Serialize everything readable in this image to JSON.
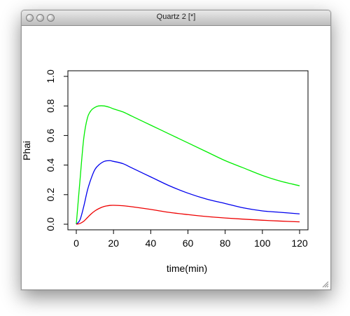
{
  "window": {
    "title": "Quartz 2 [*]"
  },
  "chart_data": {
    "type": "line",
    "xlabel": "time(min)",
    "ylabel": "Phai",
    "xlim": [
      0,
      120
    ],
    "ylim": [
      0,
      1.0
    ],
    "x_ticks": [
      "0",
      "20",
      "40",
      "60",
      "80",
      "100",
      "120"
    ],
    "y_ticks": [
      "0.0",
      "0.2",
      "0.4",
      "0.6",
      "0.8",
      "1.0"
    ],
    "grid": false,
    "series": [
      {
        "color": "#00ee00",
        "x": [
          0,
          2,
          4,
          6,
          8,
          10,
          12,
          15,
          18,
          20,
          25,
          30,
          40,
          50,
          60,
          70,
          80,
          90,
          100,
          110,
          120
        ],
        "y": [
          0.0,
          0.3,
          0.58,
          0.72,
          0.77,
          0.79,
          0.8,
          0.8,
          0.79,
          0.78,
          0.76,
          0.73,
          0.67,
          0.61,
          0.55,
          0.49,
          0.43,
          0.38,
          0.33,
          0.29,
          0.26
        ]
      },
      {
        "color": "#0000ee",
        "x": [
          0,
          2,
          4,
          6,
          8,
          10,
          12,
          15,
          18,
          20,
          25,
          30,
          40,
          50,
          60,
          70,
          80,
          90,
          100,
          110,
          120
        ],
        "y": [
          0.0,
          0.03,
          0.12,
          0.23,
          0.31,
          0.37,
          0.4,
          0.425,
          0.43,
          0.425,
          0.41,
          0.38,
          0.32,
          0.26,
          0.21,
          0.17,
          0.14,
          0.11,
          0.09,
          0.08,
          0.07
        ]
      },
      {
        "color": "#ee0000",
        "x": [
          0,
          2,
          4,
          6,
          8,
          10,
          12,
          15,
          18,
          20,
          25,
          30,
          40,
          50,
          60,
          70,
          80,
          90,
          100,
          110,
          120
        ],
        "y": [
          0.0,
          0.005,
          0.02,
          0.045,
          0.07,
          0.09,
          0.105,
          0.12,
          0.127,
          0.128,
          0.125,
          0.118,
          0.1,
          0.08,
          0.065,
          0.052,
          0.042,
          0.034,
          0.027,
          0.021,
          0.016
        ]
      }
    ]
  }
}
